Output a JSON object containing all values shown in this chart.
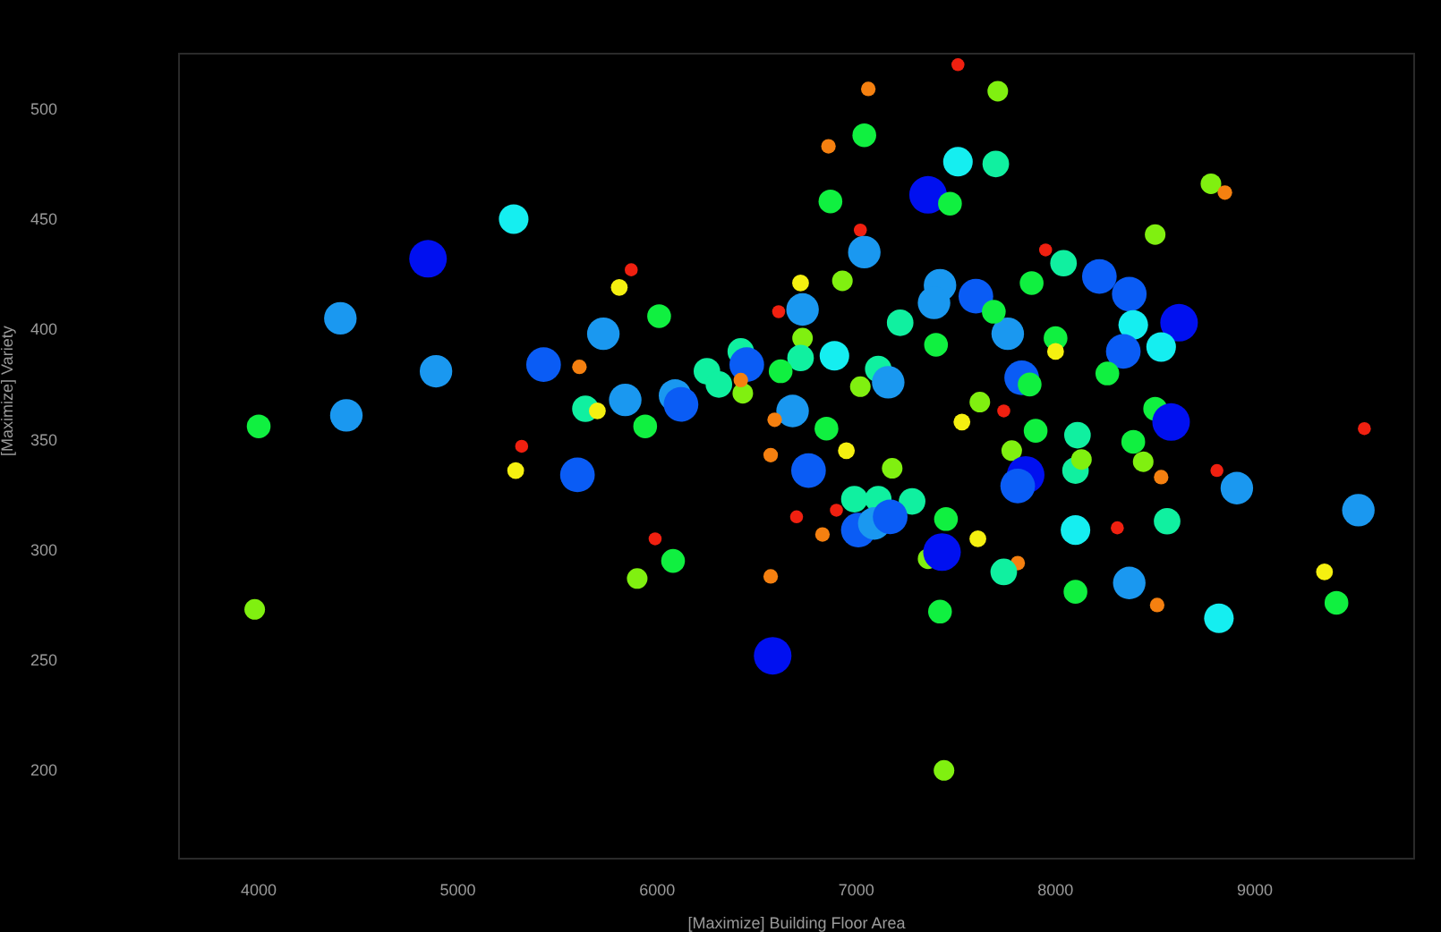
{
  "chart_data": {
    "type": "bubble",
    "xlabel": "[Maximize] Building Floor Area",
    "ylabel": "[Maximize] Variety",
    "xlim": [
      3600,
      9800
    ],
    "ylim": [
      160,
      525
    ],
    "xticks": [
      4000,
      5000,
      6000,
      7000,
      8000,
      9000
    ],
    "yticks": [
      200,
      250,
      300,
      350,
      400,
      450,
      500
    ],
    "grid": false,
    "legend": false,
    "x": [
      4000,
      3980,
      4410,
      4440,
      4850,
      4890,
      5280,
      5290,
      5320,
      5600,
      5990,
      6080,
      5900,
      5870,
      5810,
      6010,
      5730,
      5430,
      5610,
      5640,
      5700,
      5840,
      5940,
      6090,
      6120,
      6250,
      6310,
      6420,
      6450,
      6430,
      6420,
      7510,
      7710,
      7060,
      7040,
      6860,
      7510,
      7700,
      7360,
      7470,
      6870,
      8780,
      8850,
      8500,
      7020,
      7040,
      7950,
      8040,
      8220,
      8370,
      8620,
      8390,
      8530,
      8340,
      8260,
      7880,
      8000,
      8000,
      7760,
      7600,
      7690,
      7420,
      7390,
      7220,
      7400,
      6930,
      6720,
      6610,
      6730,
      6730,
      6720,
      6890,
      6620,
      7110,
      7160,
      7020,
      7830,
      7870,
      6680,
      6590,
      6850,
      6950,
      7180,
      7620,
      7740,
      7530,
      7900,
      8110,
      8390,
      8500,
      8580,
      7780,
      8440,
      9550,
      8810,
      6570,
      6760,
      7850,
      7810,
      8100,
      8130,
      8530,
      8910,
      9520,
      6990,
      7110,
      7280,
      6700,
      6900,
      6830,
      7010,
      7090,
      7170,
      7450,
      7610,
      7360,
      7430,
      7810,
      7740,
      8100,
      8310,
      8560,
      6570,
      7420,
      8100,
      8370,
      8510,
      8820,
      9350,
      9410,
      6580,
      7440
    ],
    "values": [
      356,
      273,
      405,
      361,
      432,
      381,
      450,
      336,
      347,
      334,
      305,
      295,
      287,
      427,
      419,
      406,
      398,
      384,
      383,
      364,
      363,
      368,
      356,
      370,
      366,
      381,
      375,
      390,
      384,
      371,
      377,
      520,
      508,
      509,
      488,
      483,
      476,
      475,
      461,
      457,
      458,
      466,
      462,
      443,
      445,
      435,
      436,
      430,
      424,
      416,
      403,
      402,
      392,
      390,
      380,
      421,
      396,
      390,
      398,
      415,
      408,
      420,
      412,
      403,
      393,
      422,
      421,
      408,
      409,
      396,
      387,
      388,
      381,
      382,
      376,
      374,
      378,
      375,
      363,
      359,
      355,
      345,
      337,
      367,
      363,
      358,
      354,
      352,
      349,
      364,
      358,
      345,
      340,
      355,
      336,
      343,
      336,
      334,
      329,
      336,
      341,
      333,
      328,
      318,
      323,
      323,
      322,
      315,
      318,
      307,
      309,
      312,
      315,
      314,
      305,
      296,
      299,
      294,
      290,
      309,
      310,
      313,
      288,
      272,
      281,
      285,
      275,
      269,
      290,
      276,
      252,
      200
    ],
    "sizes": [
      0.4,
      0.3,
      0.75,
      0.75,
      1,
      0.75,
      0.62,
      0.2,
      0.12,
      0.85,
      0.12,
      0.4,
      0.3,
      0.12,
      0.2,
      0.4,
      0.75,
      0.85,
      0.15,
      0.5,
      0.2,
      0.75,
      0.4,
      0.75,
      0.85,
      0.5,
      0.5,
      0.5,
      0.85,
      0.3,
      0.15,
      0.12,
      0.3,
      0.15,
      0.4,
      0.15,
      0.62,
      0.5,
      1,
      0.4,
      0.4,
      0.3,
      0.15,
      0.3,
      0.12,
      0.75,
      0.12,
      0.5,
      0.85,
      0.85,
      1,
      0.62,
      0.62,
      0.85,
      0.4,
      0.4,
      0.4,
      0.2,
      0.75,
      0.85,
      0.4,
      0.75,
      0.75,
      0.5,
      0.4,
      0.3,
      0.2,
      0.12,
      0.75,
      0.3,
      0.5,
      0.62,
      0.4,
      0.5,
      0.75,
      0.3,
      0.85,
      0.4,
      0.75,
      0.15,
      0.4,
      0.2,
      0.3,
      0.3,
      0.12,
      0.2,
      0.4,
      0.5,
      0.4,
      0.4,
      1,
      0.3,
      0.3,
      0.12,
      0.12,
      0.15,
      0.85,
      1,
      0.85,
      0.5,
      0.3,
      0.15,
      0.75,
      0.75,
      0.5,
      0.5,
      0.5,
      0.12,
      0.12,
      0.15,
      0.85,
      0.75,
      0.85,
      0.4,
      0.2,
      0.3,
      1,
      0.15,
      0.5,
      0.62,
      0.12,
      0.5,
      0.15,
      0.4,
      0.4,
      0.75,
      0.15,
      0.62,
      0.2,
      0.4,
      1,
      0.3
    ],
    "colors": [
      "#10f040",
      "#80f010",
      "#1a98f0",
      "#1a98f0",
      "#0010f0",
      "#1a98f0",
      "#15eef0",
      "#f5f010",
      "#f02010",
      "#0a5cf5",
      "#f02010",
      "#10f040",
      "#80f010",
      "#f02010",
      "#f5f010",
      "#10f040",
      "#1a98f0",
      "#0a5cf5",
      "#f58010",
      "#10f0a0",
      "#f5f010",
      "#1a98f0",
      "#10f040",
      "#1a98f0",
      "#0a5cf5",
      "#10f0a0",
      "#10f0a0",
      "#10f0a0",
      "#0a5cf5",
      "#80f010",
      "#f58010",
      "#f02010",
      "#80f010",
      "#f58010",
      "#10f040",
      "#f58010",
      "#15eef0",
      "#10f0a0",
      "#0010f0",
      "#10f040",
      "#10f040",
      "#80f010",
      "#f58010",
      "#80f010",
      "#f02010",
      "#1a98f0",
      "#f02010",
      "#10f0a0",
      "#0a5cf5",
      "#0a5cf5",
      "#0010f0",
      "#15eef0",
      "#15eef0",
      "#0a5cf5",
      "#10f040",
      "#10f040",
      "#10f040",
      "#f5f010",
      "#1a98f0",
      "#0a5cf5",
      "#10f040",
      "#1a98f0",
      "#1a98f0",
      "#10f0a0",
      "#10f040",
      "#80f010",
      "#f5f010",
      "#f02010",
      "#1a98f0",
      "#80f010",
      "#10f0a0",
      "#15eef0",
      "#10f040",
      "#10f0a0",
      "#1a98f0",
      "#80f010",
      "#0a5cf5",
      "#10f040",
      "#1a98f0",
      "#f58010",
      "#10f040",
      "#f5f010",
      "#80f010",
      "#80f010",
      "#f02010",
      "#f5f010",
      "#10f040",
      "#10f0a0",
      "#10f040",
      "#10f040",
      "#0010f0",
      "#80f010",
      "#80f010",
      "#f02010",
      "#f02010",
      "#f58010",
      "#0a5cf5",
      "#0010f0",
      "#0a5cf5",
      "#10f0a0",
      "#80f010",
      "#f58010",
      "#1a98f0",
      "#1a98f0",
      "#10f0a0",
      "#10f0a0",
      "#10f0a0",
      "#f02010",
      "#f02010",
      "#f58010",
      "#0a5cf5",
      "#1a98f0",
      "#0a5cf5",
      "#10f040",
      "#f5f010",
      "#80f010",
      "#0010f0",
      "#f58010",
      "#10f0a0",
      "#15eef0",
      "#f02010",
      "#10f0a0",
      "#f58010",
      "#10f040",
      "#10f040",
      "#1a98f0",
      "#f58010",
      "#15eef0",
      "#f5f010",
      "#10f040",
      "#0010f0",
      "#80f010"
    ]
  }
}
